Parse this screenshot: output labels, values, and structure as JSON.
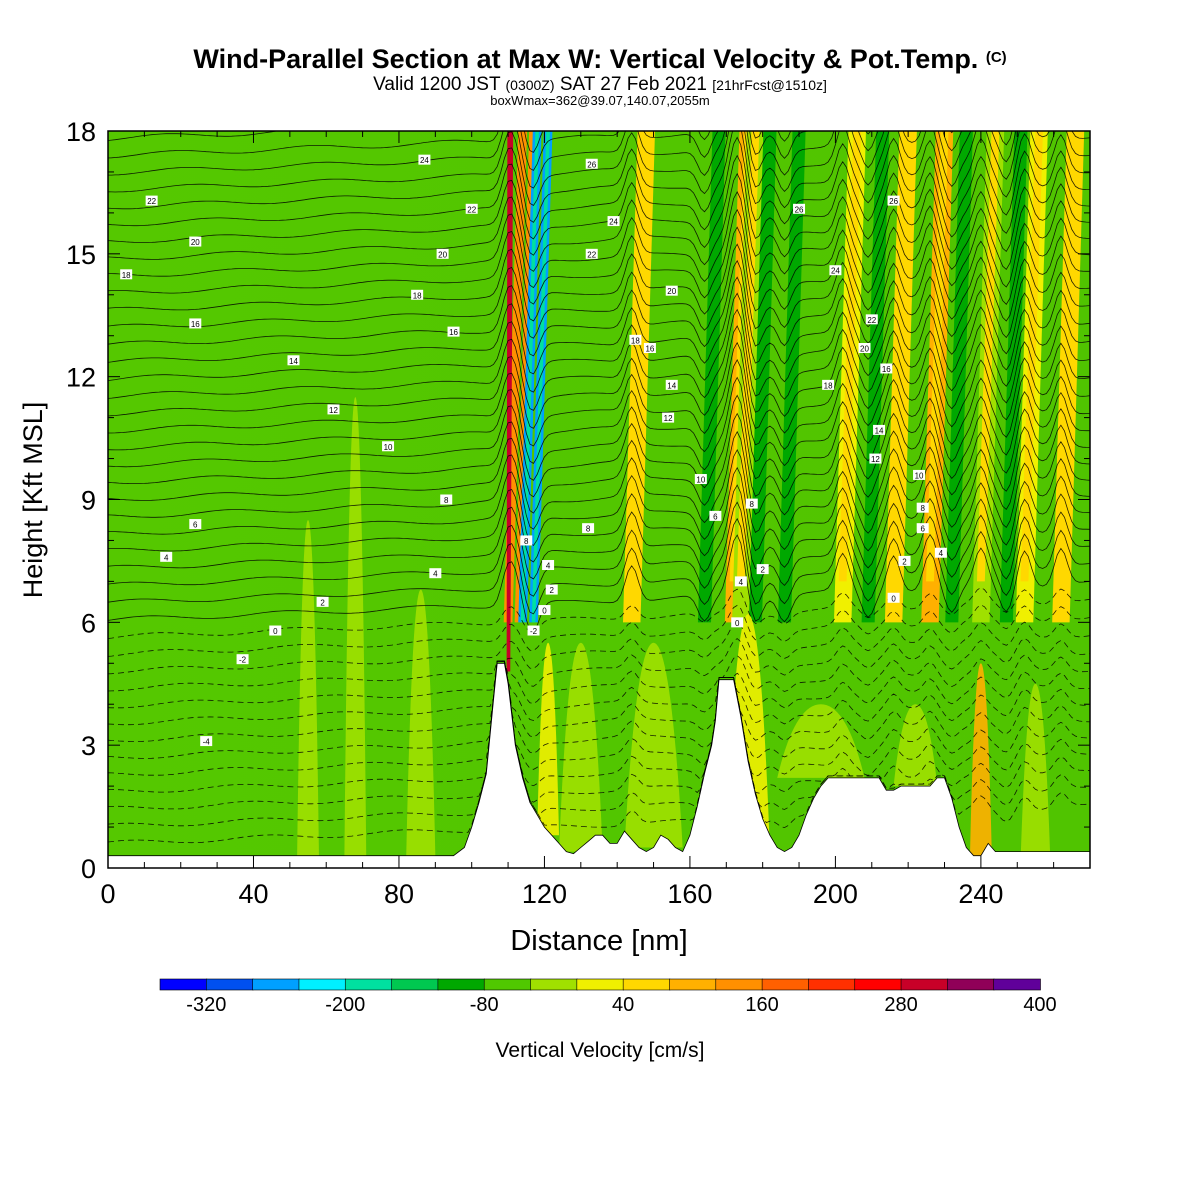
{
  "title": {
    "main": "Wind-Parallel Section at Max W: Vertical Velocity & Pot.Temp.",
    "main_unit": "(C)",
    "valid_prefix": "Valid 1200 JST",
    "valid_utc": "(0300Z)",
    "valid_date": "SAT 27 Feb 2021",
    "forecast": "[21hrFcst@1510z]",
    "box": "boxWmax=362@39.07,140.07,2055m"
  },
  "chart_data": {
    "type": "heatmap",
    "title": "Wind-Parallel Section at Max W: Vertical Velocity & Pot.Temp.",
    "xlabel": "Distance [nm]",
    "ylabel": "Height [Kft MSL]",
    "xlim": [
      0,
      270
    ],
    "ylim": [
      0,
      18
    ],
    "x_ticks": [
      0,
      40,
      80,
      120,
      160,
      200,
      240
    ],
    "y_ticks": [
      0,
      3,
      6,
      9,
      12,
      15,
      18
    ],
    "colorbar": {
      "label": "Vertical Velocity [cm/s]",
      "tick_labels": [
        "-320",
        "-200",
        "-80",
        "40",
        "160",
        "280",
        "400"
      ],
      "tick_values": [
        -320,
        -200,
        -80,
        40,
        160,
        280,
        400
      ],
      "colors": [
        "#0000ff",
        "#0050f0",
        "#00a0ff",
        "#00f0ff",
        "#00e0a0",
        "#00c850",
        "#00a800",
        "#50c800",
        "#a0e000",
        "#f0f000",
        "#ffd800",
        "#ffb000",
        "#ff9000",
        "#ff6000",
        "#ff3000",
        "#ff0000",
        "#c80028",
        "#900058",
        "#60009a"
      ]
    },
    "terrain": [
      [
        0,
        0.3
      ],
      [
        95,
        0.3
      ],
      [
        98,
        0.5
      ],
      [
        100,
        1.0
      ],
      [
        102,
        1.6
      ],
      [
        104,
        2.3
      ],
      [
        105,
        3.2
      ],
      [
        106,
        4.1
      ],
      [
        107,
        5.0
      ],
      [
        109,
        5.0
      ],
      [
        110,
        4.5
      ],
      [
        112,
        3.0
      ],
      [
        114,
        2.2
      ],
      [
        116,
        1.6
      ],
      [
        118,
        1.3
      ],
      [
        120,
        1.0
      ],
      [
        122,
        0.8
      ],
      [
        124,
        0.6
      ],
      [
        126,
        0.4
      ],
      [
        128,
        0.35
      ],
      [
        130,
        0.5
      ],
      [
        132,
        0.65
      ],
      [
        134,
        0.8
      ],
      [
        136,
        0.8
      ],
      [
        138,
        0.6
      ],
      [
        140,
        0.6
      ],
      [
        142,
        0.9
      ],
      [
        144,
        0.7
      ],
      [
        146,
        0.5
      ],
      [
        148,
        0.4
      ],
      [
        150,
        0.5
      ],
      [
        152,
        0.8
      ],
      [
        154,
        0.7
      ],
      [
        156,
        0.5
      ],
      [
        158,
        0.4
      ],
      [
        160,
        0.8
      ],
      [
        162,
        1.5
      ],
      [
        164,
        2.3
      ],
      [
        166,
        3.0
      ],
      [
        167,
        3.6
      ],
      [
        168,
        4.6
      ],
      [
        172,
        4.6
      ],
      [
        174,
        3.7
      ],
      [
        176,
        2.6
      ],
      [
        178,
        1.8
      ],
      [
        180,
        1.2
      ],
      [
        182,
        0.8
      ],
      [
        184,
        0.5
      ],
      [
        186,
        0.4
      ],
      [
        188,
        0.5
      ],
      [
        190,
        0.8
      ],
      [
        192,
        1.3
      ],
      [
        194,
        1.7
      ],
      [
        196,
        2.0
      ],
      [
        198,
        2.2
      ],
      [
        212,
        2.2
      ],
      [
        214,
        1.9
      ],
      [
        216,
        1.9
      ],
      [
        218,
        2.0
      ],
      [
        226,
        2.0
      ],
      [
        228,
        2.2
      ],
      [
        230,
        2.2
      ],
      [
        232,
        1.7
      ],
      [
        234,
        1.0
      ],
      [
        236,
        0.5
      ],
      [
        238,
        0.3
      ],
      [
        240,
        0.3
      ],
      [
        242,
        0.6
      ],
      [
        244,
        0.4
      ],
      [
        270,
        0.4
      ]
    ],
    "updraft_bands_nm": [
      110,
      113,
      144,
      172,
      174,
      202,
      216,
      226,
      240,
      252,
      262
    ],
    "downdraft_bands_nm": [
      114,
      117,
      164,
      178,
      186,
      209,
      232,
      247
    ],
    "theta_contour_labels": [
      {
        "value": "22",
        "x": 12,
        "y": 16.3
      },
      {
        "value": "20",
        "x": 24,
        "y": 15.3
      },
      {
        "value": "18",
        "x": 5,
        "y": 14.5
      },
      {
        "value": "16",
        "x": 24,
        "y": 13.3
      },
      {
        "value": "14",
        "x": 51,
        "y": 12.4
      },
      {
        "value": "12",
        "x": 62,
        "y": 11.2
      },
      {
        "value": "10",
        "x": 77,
        "y": 10.3
      },
      {
        "value": "8",
        "x": 93,
        "y": 9.0
      },
      {
        "value": "6",
        "x": 24,
        "y": 8.4
      },
      {
        "value": "4",
        "x": 16,
        "y": 7.6
      },
      {
        "value": "4",
        "x": 90,
        "y": 7.2
      },
      {
        "value": "2",
        "x": 59,
        "y": 6.5
      },
      {
        "value": "0",
        "x": 46,
        "y": 5.8
      },
      {
        "value": "-2",
        "x": 37,
        "y": 5.1
      },
      {
        "value": "-4",
        "x": 27,
        "y": 3.1
      },
      {
        "value": "24",
        "x": 87,
        "y": 17.3
      },
      {
        "value": "22",
        "x": 100,
        "y": 16.1
      },
      {
        "value": "20",
        "x": 92,
        "y": 15.0
      },
      {
        "value": "18",
        "x": 85,
        "y": 14.0
      },
      {
        "value": "16",
        "x": 95,
        "y": 13.1
      },
      {
        "value": "26",
        "x": 133,
        "y": 17.2
      },
      {
        "value": "24",
        "x": 139,
        "y": 15.8
      },
      {
        "value": "22",
        "x": 133,
        "y": 15.0
      },
      {
        "value": "20",
        "x": 155,
        "y": 14.1
      },
      {
        "value": "18",
        "x": 145,
        "y": 12.9
      },
      {
        "value": "16",
        "x": 149,
        "y": 12.7
      },
      {
        "value": "14",
        "x": 155,
        "y": 11.8
      },
      {
        "value": "12",
        "x": 154,
        "y": 11.0
      },
      {
        "value": "10",
        "x": 163,
        "y": 9.5
      },
      {
        "value": "8",
        "x": 132,
        "y": 8.3
      },
      {
        "value": "6",
        "x": 167,
        "y": 8.6
      },
      {
        "value": "4",
        "x": 121,
        "y": 7.4
      },
      {
        "value": "2",
        "x": 122,
        "y": 6.8
      },
      {
        "value": "0",
        "x": 120,
        "y": 6.3
      },
      {
        "value": "-2",
        "x": 117,
        "y": 5.8
      },
      {
        "value": "8",
        "x": 115,
        "y": 8.0
      },
      {
        "value": "26",
        "x": 190,
        "y": 16.1
      },
      {
        "value": "26",
        "x": 216,
        "y": 16.3
      },
      {
        "value": "24",
        "x": 200,
        "y": 14.6
      },
      {
        "value": "22",
        "x": 210,
        "y": 13.4
      },
      {
        "value": "20",
        "x": 208,
        "y": 12.7
      },
      {
        "value": "18",
        "x": 198,
        "y": 11.8
      },
      {
        "value": "16",
        "x": 214,
        "y": 12.2
      },
      {
        "value": "14",
        "x": 212,
        "y": 10.7
      },
      {
        "value": "12",
        "x": 211,
        "y": 10.0
      },
      {
        "value": "10",
        "x": 223,
        "y": 9.6
      },
      {
        "value": "8",
        "x": 177,
        "y": 8.9
      },
      {
        "value": "8",
        "x": 224,
        "y": 8.8
      },
      {
        "value": "6",
        "x": 224,
        "y": 8.3
      },
      {
        "value": "4",
        "x": 229,
        "y": 7.7
      },
      {
        "value": "2",
        "x": 219,
        "y": 7.5
      },
      {
        "value": "0",
        "x": 216,
        "y": 6.6
      },
      {
        "value": "2",
        "x": 180,
        "y": 7.3
      },
      {
        "value": "4",
        "x": 174,
        "y": 7.0
      },
      {
        "value": "0",
        "x": 173,
        "y": 6.0
      }
    ]
  }
}
